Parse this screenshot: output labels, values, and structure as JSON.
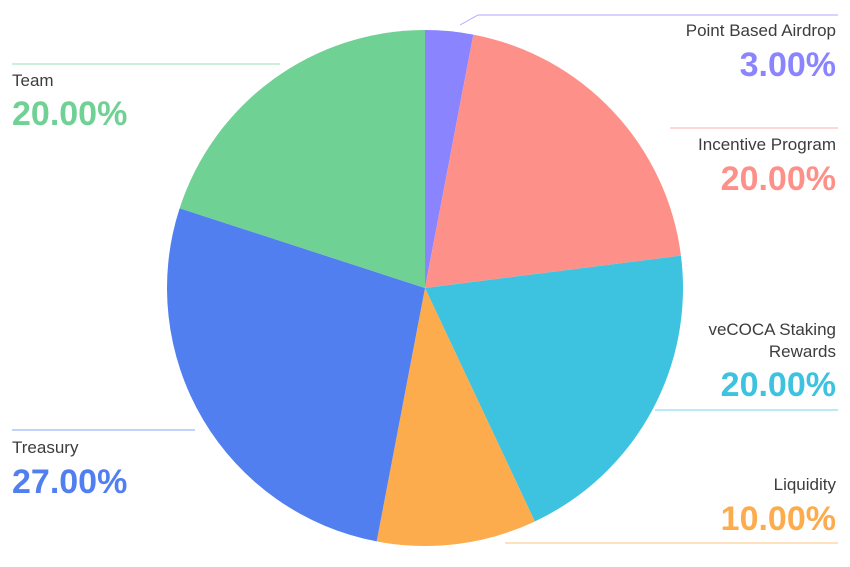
{
  "chart_data": {
    "type": "pie",
    "title": "",
    "slices": [
      {
        "name": "Point Based Airdrop",
        "value": 3.0,
        "display": "3.00%",
        "color": "#8b84ff"
      },
      {
        "name": "Incentive Program",
        "value": 20.0,
        "display": "20.00%",
        "color": "#fd918a"
      },
      {
        "name": "veCOCA Staking Rewards",
        "name_lines": [
          "veCOCA Staking",
          "Rewards"
        ],
        "value": 20.0,
        "display": "20.00%",
        "color": "#3dc2e0"
      },
      {
        "name": "Liquidity",
        "value": 10.0,
        "display": "10.00%",
        "color": "#fcac4c"
      },
      {
        "name": "Treasury",
        "value": 27.0,
        "display": "27.00%",
        "color": "#527ff0"
      },
      {
        "name": "Team",
        "value": 20.0,
        "display": "20.00%",
        "color": "#6fd194"
      }
    ],
    "legend": "callouts"
  }
}
